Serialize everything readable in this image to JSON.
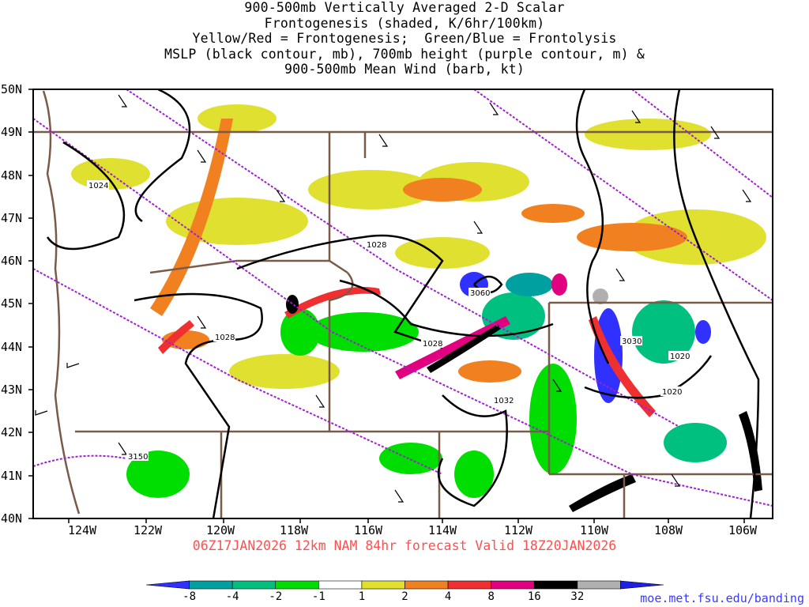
{
  "title_lines": [
    "900-500mb Vertically Averaged 2-D Scalar",
    "Frontogenesis (shaded, K/6hr/100km)",
    "Yellow/Red = Frontogenesis;  Green/Blue = Frontolysis",
    "MSLP (black contour, mb), 700mb height (purple contour, m) &",
    "900-500mb Mean Wind (barb, kt)"
  ],
  "lat_labels": [
    "50N",
    "49N",
    "48N",
    "47N",
    "46N",
    "45N",
    "44N",
    "43N",
    "42N",
    "41N",
    "40N"
  ],
  "lon_labels": [
    "124W",
    "122W",
    "120W",
    "118W",
    "116W",
    "114W",
    "112W",
    "110W",
    "108W",
    "106W"
  ],
  "contour_labels": [
    "1024",
    "1028",
    "1028",
    "1028",
    "3060",
    "3030",
    "1020",
    "1020",
    "1032",
    "3150"
  ],
  "footer": "06Z17JAN2026 12km NAM 84hr forecast Valid 18Z20JAN2026",
  "credit": "moe.met.fsu.edu/banding",
  "colorbar": {
    "labels": [
      "-8",
      "-4",
      "-2",
      "-1",
      "1",
      "2",
      "4",
      "8",
      "16",
      "32"
    ],
    "colors": [
      "#3030ff",
      "#00a0a0",
      "#00c080",
      "#00dd00",
      "#ffffff",
      "#e0e030",
      "#f08020",
      "#f03030",
      "#e00080",
      "#000000",
      "#b0b0b0",
      "#2020e0"
    ]
  },
  "colors": {
    "background": "#ffffff",
    "boundary": "#7a5a48",
    "mslp": "#000000",
    "height700": "#a020d0",
    "footer": "#ff5050",
    "credit": "#3a3aff"
  }
}
